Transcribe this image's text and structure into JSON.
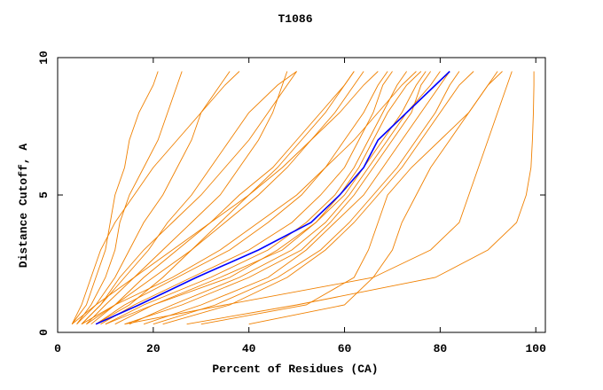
{
  "chart_data": {
    "type": "line",
    "title": "T1086",
    "x_label": "Percent of Residues (CA)",
    "y_label": "Distance Cutoff, A",
    "xlim": [
      0,
      102
    ],
    "ylim": [
      0,
      10
    ],
    "xticks": [
      0,
      20,
      40,
      60,
      80,
      100
    ],
    "yticks": [
      0,
      5,
      10
    ],
    "series": [
      {
        "color": "#f08000",
        "x": [
          3,
          6,
          8,
          10,
          11,
          12,
          14,
          15,
          17,
          20,
          21
        ],
        "values": [
          0.3,
          1,
          2,
          3,
          4,
          5,
          6,
          7,
          8,
          9,
          9.5
        ]
      },
      {
        "color": "#f08000",
        "x": [
          4,
          7,
          10,
          12,
          13,
          15,
          18,
          21,
          23,
          25,
          26
        ],
        "values": [
          0.3,
          1,
          2,
          3,
          4,
          5,
          6,
          7,
          8,
          9,
          9.5
        ]
      },
      {
        "color": "#f08000",
        "x": [
          3,
          8,
          12,
          15,
          18,
          22,
          25,
          28,
          30,
          34,
          36
        ],
        "values": [
          0.3,
          1,
          2,
          3,
          4,
          5,
          6,
          7,
          8,
          9,
          9.5
        ]
      },
      {
        "color": "#f08000",
        "x": [
          5,
          9,
          14,
          19,
          23,
          28,
          32,
          36,
          40,
          46,
          50
        ],
        "values": [
          0.3,
          1,
          2,
          3,
          4,
          5,
          6,
          7,
          8,
          9,
          9.5
        ]
      },
      {
        "color": "#f08000",
        "x": [
          6,
          10,
          16,
          22,
          28,
          34,
          38,
          42,
          45,
          47,
          48
        ],
        "values": [
          0.3,
          1,
          2,
          3,
          4,
          5,
          6,
          7,
          8,
          9,
          9.5
        ]
      },
      {
        "color": "#f08000",
        "x": [
          7,
          12,
          18,
          25,
          32,
          38,
          45,
          50,
          55,
          60,
          62
        ],
        "values": [
          0.3,
          1,
          2,
          3,
          4,
          5,
          6,
          7,
          8,
          9,
          9.5
        ]
      },
      {
        "color": "#f08000",
        "x": [
          5,
          12,
          20,
          28,
          35,
          42,
          48,
          53,
          58,
          62,
          64
        ],
        "values": [
          0.3,
          1,
          2,
          3,
          4,
          5,
          6,
          7,
          8,
          9,
          9.5
        ]
      },
      {
        "color": "#f08000",
        "x": [
          8,
          14,
          25,
          36,
          44,
          51,
          56,
          60,
          64,
          67,
          69
        ],
        "values": [
          0.3,
          1,
          2,
          3,
          4,
          5,
          6,
          7,
          8,
          9,
          9.5
        ]
      },
      {
        "color": "#f08000",
        "x": [
          9,
          16,
          28,
          40,
          49,
          55,
          60,
          63,
          66,
          68,
          70
        ],
        "values": [
          0.3,
          1,
          2,
          3,
          4,
          5,
          6,
          7,
          8,
          9,
          9.5
        ]
      },
      {
        "color": "#f08000",
        "x": [
          10,
          18,
          32,
          44,
          52,
          58,
          62,
          65,
          68,
          71,
          73
        ],
        "values": [
          0.3,
          1,
          2,
          3,
          4,
          5,
          6,
          7,
          8,
          9,
          9.5
        ]
      },
      {
        "color": "#f08000",
        "x": [
          12,
          20,
          34,
          47,
          54,
          60,
          64,
          68,
          72,
          75,
          77
        ],
        "values": [
          0.3,
          1,
          2,
          3,
          4,
          5,
          6,
          7,
          8,
          9,
          9.5
        ]
      },
      {
        "color": "#f08000",
        "x": [
          15,
          24,
          38,
          49,
          56,
          61,
          65,
          69,
          73,
          78,
          80
        ],
        "values": [
          0.3,
          1,
          2,
          3,
          4,
          5,
          6,
          7,
          8,
          9,
          9.5
        ]
      },
      {
        "color": "#f08000",
        "x": [
          14,
          26,
          40,
          51,
          57,
          62,
          66,
          70,
          74,
          76,
          78
        ],
        "values": [
          0.3,
          1,
          2,
          3,
          4,
          5,
          6,
          7,
          8,
          9,
          9.5
        ]
      },
      {
        "color": "#f08000",
        "x": [
          18,
          30,
          44,
          52,
          58,
          64,
          68,
          72,
          76,
          80,
          82
        ],
        "values": [
          0.3,
          1,
          2,
          3,
          4,
          5,
          6,
          7,
          8,
          9,
          9.5
        ]
      },
      {
        "color": "#f08000",
        "x": [
          20,
          33,
          46,
          55,
          61,
          66,
          71,
          75,
          79,
          82,
          84
        ],
        "values": [
          0.3,
          1,
          2,
          3,
          4,
          5,
          6,
          7,
          8,
          9,
          9.5
        ]
      },
      {
        "color": "#f08000",
        "x": [
          22,
          36,
          48,
          56,
          62,
          67,
          72,
          76,
          80,
          84,
          87
        ],
        "values": [
          0.3,
          1,
          2,
          3,
          4,
          5,
          6,
          7,
          8,
          9,
          9.5
        ]
      },
      {
        "color": "#f08000",
        "x": [
          6,
          12,
          24,
          34,
          42,
          50,
          56,
          62,
          67,
          72,
          75
        ],
        "values": [
          0.3,
          1,
          2,
          3,
          4,
          5,
          6,
          7,
          8,
          9,
          9.5
        ]
      },
      {
        "color": "#f08000",
        "x": [
          4,
          8,
          16,
          24,
          32,
          40,
          47,
          53,
          59,
          64,
          67
        ],
        "values": [
          0.3,
          1,
          2,
          3,
          4,
          5,
          6,
          7,
          8,
          9,
          9.5
        ]
      },
      {
        "color": "#f08000",
        "x": [
          10,
          20,
          36,
          46,
          54,
          59,
          63,
          66,
          69,
          73,
          76
        ],
        "values": [
          0.3,
          1,
          2,
          3,
          4,
          5,
          6,
          7,
          8,
          9,
          9.5
        ]
      },
      {
        "color": "#f08000",
        "x": [
          27,
          50,
          79,
          90,
          96,
          98,
          99,
          99.3,
          99.5,
          99.6,
          99.6
        ],
        "values": [
          0.3,
          1,
          2,
          3,
          4,
          5,
          6,
          7,
          8,
          9,
          9.5
        ]
      },
      {
        "color": "#f08000",
        "x": [
          14,
          35,
          66,
          78,
          84,
          86,
          88,
          90,
          92,
          94,
          95
        ],
        "values": [
          0.3,
          1,
          2,
          3,
          4,
          5,
          6,
          7,
          8,
          9,
          9.5
        ]
      },
      {
        "color": "#f08000",
        "x": [
          30,
          52,
          62,
          65,
          67,
          69,
          74,
          80,
          86,
          90,
          93
        ],
        "values": [
          0.3,
          1,
          2,
          3,
          4,
          5,
          6,
          7,
          8,
          9,
          9.5
        ]
      },
      {
        "color": "#f08000",
        "x": [
          40,
          60,
          66,
          70,
          72,
          75,
          78,
          82,
          86,
          90,
          92
        ],
        "values": [
          0.3,
          1,
          2,
          3,
          4,
          5,
          6,
          7,
          8,
          9,
          9.5
        ]
      },
      {
        "color": "#f08000",
        "x": [
          3,
          5,
          7,
          9,
          12,
          16,
          20,
          25,
          30,
          35,
          38
        ],
        "values": [
          0.3,
          1,
          2,
          3,
          4,
          5,
          6,
          7,
          8,
          9,
          9.5
        ]
      },
      {
        "color": "#f08000",
        "x": [
          5,
          9,
          13,
          18,
          24,
          30,
          35,
          40,
          44,
          48,
          50
        ],
        "values": [
          0.3,
          1,
          2,
          3,
          4,
          5,
          6,
          7,
          8,
          9,
          9.5
        ]
      },
      {
        "color": "#f08000",
        "x": [
          8,
          15,
          22,
          28,
          34,
          40,
          46,
          51,
          56,
          60,
          62
        ],
        "values": [
          0.3,
          1,
          2,
          3,
          4,
          5,
          6,
          7,
          8,
          9,
          9.5
        ]
      },
      {
        "color": "#0000ff",
        "x": [
          8,
          17,
          29,
          42,
          53,
          59,
          64,
          67,
          73,
          79,
          82
        ],
        "values": [
          0.3,
          1,
          2,
          3,
          4,
          5,
          6,
          7,
          8,
          9,
          9.5
        ]
      }
    ]
  }
}
